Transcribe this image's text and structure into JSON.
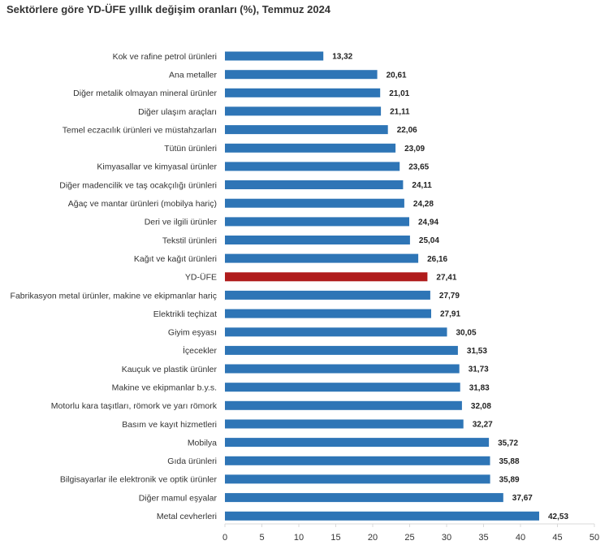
{
  "chart_data": {
    "type": "bar",
    "orientation": "horizontal",
    "title": "Sektörlere göre YD-ÜFE yıllık değişim oranları (%), Temmuz 2024",
    "categories": [
      "Kok ve rafine petrol ürünleri",
      "Ana metaller",
      "Diğer metalik olmayan mineral ürünler",
      "Diğer ulaşım araçları",
      "Temel eczacılık ürünleri ve müstahzarları",
      "Tütün ürünleri",
      "Kimyasallar ve kimyasal ürünler",
      "Diğer madencilik ve taş ocakçılığı ürünleri",
      "Ağaç ve mantar ürünleri (mobilya hariç)",
      "Deri ve ilgili ürünler",
      "Tekstil ürünleri",
      "Kağıt ve kağıt ürünleri",
      "YD-ÜFE",
      "Fabrikasyon metal ürünler, makine ve ekipmanlar hariç",
      "Elektrikli teçhizat",
      "Giyim eşyası",
      "İçecekler",
      "Kauçuk ve plastik ürünler",
      "Makine ve ekipmanlar b.y.s.",
      "Motorlu kara taşıtları, römork ve yarı römork",
      "Basım ve kayıt hizmetleri",
      "Mobilya",
      "Gıda ürünleri",
      "Bilgisayarlar ile elektronik ve optik ürünler",
      "Diğer mamul eşyalar",
      "Metal cevherleri"
    ],
    "values": [
      13.32,
      20.61,
      21.01,
      21.11,
      22.06,
      23.09,
      23.65,
      24.11,
      24.28,
      24.94,
      25.04,
      26.16,
      27.41,
      27.79,
      27.91,
      30.05,
      31.53,
      31.73,
      31.83,
      32.08,
      32.27,
      35.72,
      35.88,
      35.89,
      37.67,
      42.53
    ],
    "value_labels": [
      "13,32",
      "20,61",
      "21,01",
      "21,11",
      "22,06",
      "23,09",
      "23,65",
      "24,11",
      "24,28",
      "24,94",
      "25,04",
      "26,16",
      "27,41",
      "27,79",
      "27,91",
      "30,05",
      "31,53",
      "31,73",
      "31,83",
      "32,08",
      "32,27",
      "35,72",
      "35,88",
      "35,89",
      "37,67",
      "42,53"
    ],
    "highlight_category": "YD-ÜFE",
    "xlim": [
      0,
      50
    ],
    "xticks": [
      "0",
      "5",
      "10",
      "15",
      "20",
      "25",
      "30",
      "35",
      "40",
      "45",
      "50"
    ],
    "grid": false,
    "legend": "none",
    "colors": {
      "bar": "#2e75b6",
      "highlight": "#b01c1c",
      "axis": "#d9d9d9"
    }
  }
}
